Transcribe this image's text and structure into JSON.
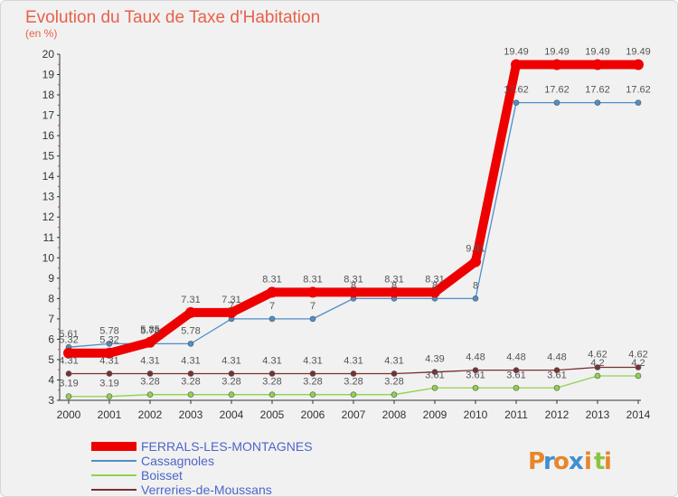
{
  "chart_data": {
    "type": "line",
    "title": "Evolution du Taux de Taxe d'Habitation",
    "ylabel": "(en %)",
    "xlabel": "",
    "ylim": [
      3,
      20
    ],
    "yticks": [
      3,
      4,
      5,
      6,
      7,
      8,
      9,
      10,
      11,
      12,
      13,
      14,
      15,
      16,
      17,
      18,
      19,
      20
    ],
    "x": [
      "2000",
      "2001",
      "2002",
      "2003",
      "2004",
      "2005",
      "2006",
      "2007",
      "2008",
      "2009",
      "2010",
      "2011",
      "2012",
      "2013",
      "2014"
    ],
    "grid": false,
    "legend_position": "bottom-left",
    "series": [
      {
        "name": "FERRALS-LES-MONTAGNES",
        "color": "#ee0000",
        "values": [
          5.32,
          5.32,
          5.85,
          7.31,
          7.31,
          8.31,
          8.31,
          8.31,
          8.31,
          8.31,
          9.81,
          19.49,
          19.49,
          19.49,
          19.49
        ],
        "labels": [
          "5.32",
          "5.32",
          "5.85",
          "7.31",
          "7.31",
          "8.31",
          "8.31",
          "8.31",
          "8.31",
          "8.31",
          "9.81",
          "19.49",
          "19.49",
          "19.49",
          "19.49"
        ]
      },
      {
        "name": "Cassagnoles",
        "color": "#4f8ec9",
        "values": [
          5.61,
          5.78,
          5.78,
          5.78,
          7,
          7,
          7,
          8,
          8,
          8,
          8,
          17.62,
          17.62,
          17.62,
          17.62
        ],
        "labels": [
          "5.61",
          "5.78",
          "5.78",
          "5.78",
          "7",
          "7",
          "7",
          "8",
          "8",
          "8",
          "8",
          "17.62",
          "17.62",
          "17.62",
          "17.62"
        ]
      },
      {
        "name": "Boisset",
        "color": "#8fd24f",
        "values": [
          3.19,
          3.19,
          3.28,
          3.28,
          3.28,
          3.28,
          3.28,
          3.28,
          3.28,
          3.61,
          3.61,
          3.61,
          3.61,
          4.2,
          4.2
        ],
        "labels": [
          "3.19",
          "3.19",
          "3.28",
          "3.28",
          "3.28",
          "3.28",
          "3.28",
          "3.28",
          "3.28",
          "3.61",
          "3.61",
          "3.61",
          "3.61",
          "4.2",
          "4.2"
        ]
      },
      {
        "name": "Verreries-de-Moussans",
        "color": "#7a2f30",
        "values": [
          4.31,
          4.31,
          4.31,
          4.31,
          4.31,
          4.31,
          4.31,
          4.31,
          4.31,
          4.39,
          4.48,
          4.48,
          4.48,
          4.62,
          4.62
        ],
        "labels": [
          "4.31",
          "4.31",
          "4.31",
          "4.31",
          "4.31",
          "4.31",
          "4.31",
          "4.31",
          "4.31",
          "4.39",
          "4.48",
          "4.48",
          "4.48",
          "4.62",
          "4.62"
        ]
      }
    ]
  },
  "logo": {
    "letters": [
      "P",
      "r",
      "o",
      "x",
      "i",
      "t",
      "i"
    ],
    "colors": [
      "#e7862a",
      "#3f8fd1",
      "#e7862a",
      "#3f8fd1",
      "#e7862a",
      "#8dc43f",
      "#e7862a"
    ]
  }
}
